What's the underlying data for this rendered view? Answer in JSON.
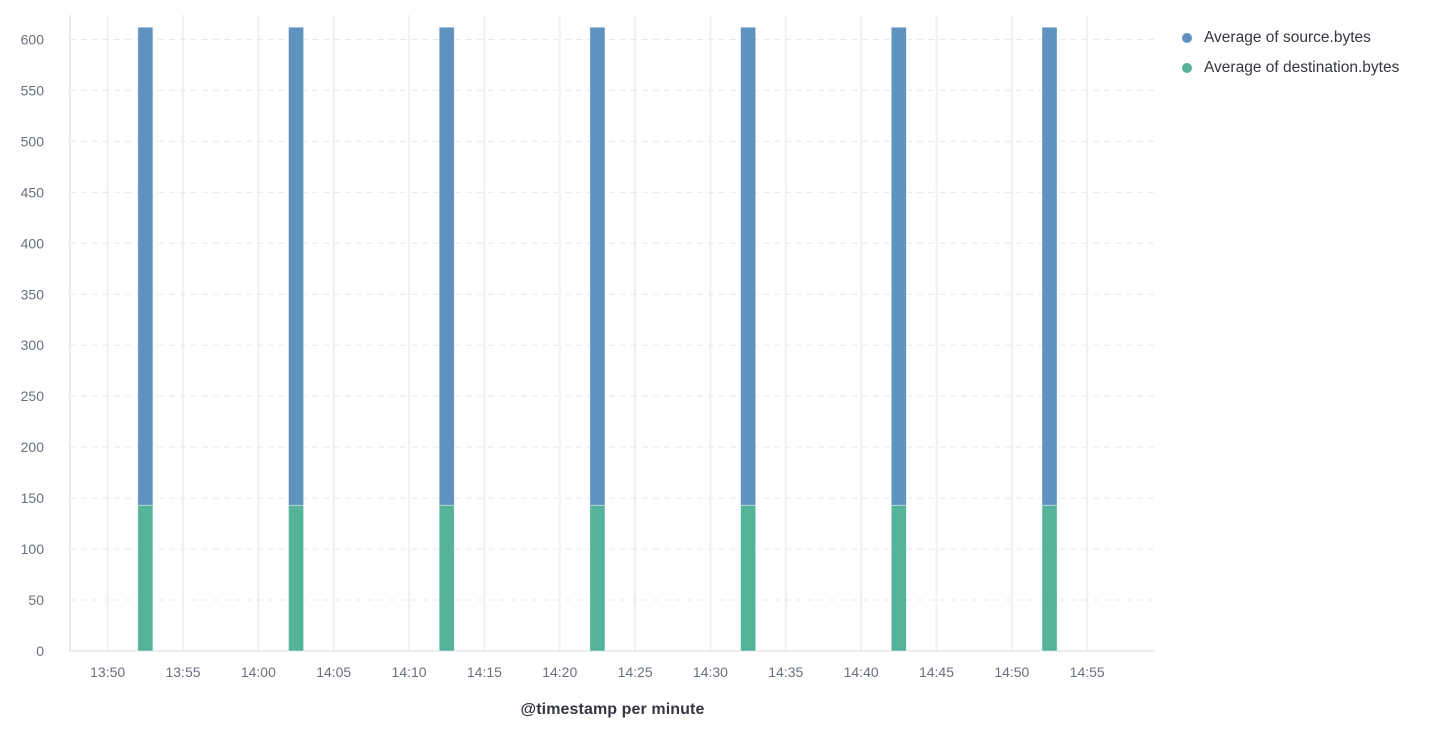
{
  "chart_data": {
    "type": "bar",
    "stacked": true,
    "title": "",
    "xlabel": "@timestamp per minute",
    "ylabel": "",
    "categories": [
      "13:52",
      "14:02",
      "14:12",
      "14:22",
      "14:32",
      "14:42",
      "14:52"
    ],
    "series": [
      {
        "name": "Average of source.bytes",
        "color": "#6092C0",
        "stack_order": "top",
        "values": [
          469,
          469,
          469,
          469,
          469,
          469,
          469
        ]
      },
      {
        "name": "Average of destination.bytes",
        "color": "#54B399",
        "stack_order": "bottom",
        "values": [
          143,
          143,
          143,
          143,
          143,
          143,
          143
        ]
      }
    ],
    "stack_totals": [
      612,
      612,
      612,
      612,
      612,
      612,
      612
    ],
    "x_ticks": [
      "13:50",
      "13:55",
      "14:00",
      "14:05",
      "14:10",
      "14:15",
      "14:20",
      "14:25",
      "14:30",
      "14:35",
      "14:40",
      "14:45",
      "14:50",
      "14:55"
    ],
    "x_domain": [
      "13:47:30",
      "14:59:30"
    ],
    "bar_width_minutes": 1,
    "y_ticks": [
      0,
      50,
      100,
      150,
      200,
      250,
      300,
      350,
      400,
      450,
      500,
      550,
      600
    ],
    "ylim": [
      0,
      624
    ],
    "grid": {
      "horizontal": "dashed",
      "vertical": "solid"
    },
    "legend_position": "right"
  },
  "legend": {
    "items": [
      {
        "label": "Average of source.bytes",
        "color": "#6092C0"
      },
      {
        "label": "Average of destination.bytes",
        "color": "#54B399"
      }
    ]
  },
  "style_colors": {
    "bar_blue": "#6092C0",
    "bar_green": "#54B399",
    "tick_label": "#69707D",
    "text_dark": "#343741",
    "grid_dashed": "#e6e9ed",
    "grid_vertical": "#eef1f5",
    "axis_left": "#e2e6ec",
    "axis_bottom": "#d6dce4"
  }
}
